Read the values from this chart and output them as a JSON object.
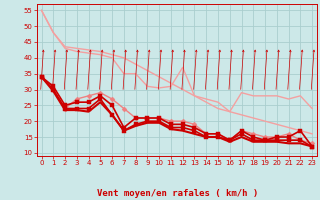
{
  "x": [
    0,
    1,
    2,
    3,
    4,
    5,
    6,
    7,
    8,
    9,
    10,
    11,
    12,
    13,
    14,
    15,
    16,
    17,
    18,
    19,
    20,
    21,
    22,
    23
  ],
  "series": [
    {
      "color": "#f4a0a0",
      "linewidth": 1.0,
      "marker": null,
      "markersize": 0,
      "values": [
        55,
        48,
        43,
        42,
        41.5,
        41,
        40,
        35,
        35,
        31,
        30.5,
        31,
        37,
        28,
        27,
        26,
        23,
        29,
        28,
        28,
        28,
        27,
        28,
        24
      ]
    },
    {
      "color": "#f4a0a0",
      "linewidth": 1.0,
      "marker": null,
      "markersize": 0,
      "values": [
        55,
        48,
        43.5,
        43,
        42.5,
        42,
        41,
        40,
        38,
        36,
        34,
        32,
        30,
        28,
        26,
        24,
        23,
        22,
        21,
        20,
        19,
        18,
        17,
        16
      ]
    },
    {
      "color": "#f08080",
      "linewidth": 1.0,
      "marker": "D",
      "markersize": 2.5,
      "values": [
        34,
        30,
        24,
        27,
        28,
        29,
        27,
        24,
        21,
        21,
        21,
        20,
        20,
        19,
        16,
        16,
        14,
        17,
        16,
        15,
        15,
        16,
        14,
        13
      ]
    },
    {
      "color": "#cc0000",
      "linewidth": 1.2,
      "marker": "s",
      "markersize": 2.5,
      "values": [
        34,
        31,
        25,
        26,
        26,
        28,
        25,
        18,
        21,
        21,
        21,
        19,
        19,
        18,
        16,
        16,
        14,
        17,
        15,
        14,
        15,
        15,
        17,
        12
      ]
    },
    {
      "color": "#cc0000",
      "linewidth": 1.2,
      "marker": "s",
      "markersize": 2.5,
      "values": [
        34,
        30,
        24,
        24,
        24,
        27,
        22,
        17,
        19,
        20,
        20,
        18,
        18,
        17,
        15,
        15,
        14,
        16,
        14,
        14,
        14,
        14,
        14,
        12
      ]
    },
    {
      "color": "#cc0000",
      "linewidth": 1.5,
      "marker": null,
      "markersize": 0,
      "values": [
        34,
        29.5,
        23.5,
        23.5,
        23,
        26,
        22,
        17,
        18.5,
        19.5,
        19.5,
        17.5,
        17,
        16,
        15,
        15,
        13.5,
        15,
        13.5,
        13.5,
        13.5,
        13,
        13,
        12
      ]
    }
  ],
  "xlabel": "Vent moyen/en rafales ( km/h )",
  "xlabel_color": "#cc0000",
  "xlabel_fontsize": 6.5,
  "yticks": [
    10,
    15,
    20,
    25,
    30,
    35,
    40,
    45,
    50,
    55
  ],
  "xticks": [
    0,
    1,
    2,
    3,
    4,
    5,
    6,
    7,
    8,
    9,
    10,
    11,
    12,
    13,
    14,
    15,
    16,
    17,
    18,
    19,
    20,
    21,
    22,
    23
  ],
  "xlim": [
    -0.4,
    23.4
  ],
  "ylim": [
    9,
    57
  ],
  "background_color": "#cce8e8",
  "grid_color": "#aacece",
  "tick_color": "#cc0000",
  "tick_fontsize": 5.0
}
